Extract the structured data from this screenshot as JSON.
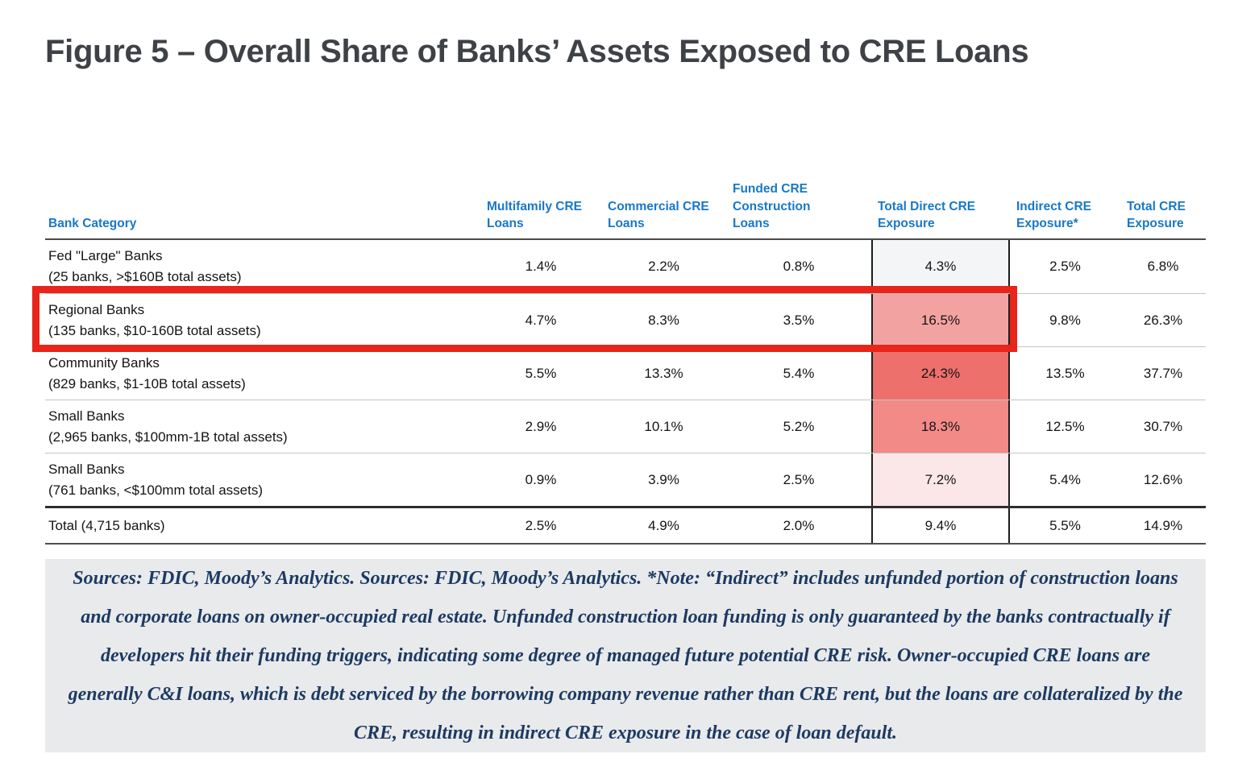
{
  "title": "Figure 5 – Overall Share of Banks’ Assets Exposed to CRE Loans",
  "table": {
    "columns": [
      {
        "id": "bank_category",
        "label": "Bank Category"
      },
      {
        "id": "multifamily",
        "label": "Multifamily CRE\nLoans"
      },
      {
        "id": "commercial",
        "label": "Commercial CRE\nLoans"
      },
      {
        "id": "funded_construction",
        "label": "Funded CRE\nConstruction\nLoans"
      },
      {
        "id": "total_direct",
        "label": "Total Direct CRE\nExposure"
      },
      {
        "id": "indirect",
        "label": "Indirect CRE\nExposure*"
      },
      {
        "id": "total",
        "label": "Total CRE\nExposure"
      }
    ],
    "rows": [
      {
        "name": "Fed \"Large\" Banks",
        "detail": "(25 banks, >$160B total assets)",
        "multifamily": "1.4%",
        "commercial": "2.2%",
        "funded_construction": "0.8%",
        "total_direct": "4.3%",
        "indirect": "2.5%",
        "total": "6.8%",
        "total_direct_bg": "#f4f5f7",
        "highlighted": false
      },
      {
        "name": "Regional Banks",
        "detail": "(135 banks, $10-160B total assets)",
        "multifamily": "4.7%",
        "commercial": "8.3%",
        "funded_construction": "3.5%",
        "total_direct": "16.5%",
        "indirect": "9.8%",
        "total": "26.3%",
        "total_direct_bg": "#f2a3a1",
        "highlighted": true
      },
      {
        "name": "Community Banks",
        "detail": "(829 banks, $1-10B total assets)",
        "multifamily": "5.5%",
        "commercial": "13.3%",
        "funded_construction": "5.4%",
        "total_direct": "24.3%",
        "indirect": "13.5%",
        "total": "37.7%",
        "total_direct_bg": "#ee706d",
        "highlighted": false
      },
      {
        "name": "Small Banks",
        "detail": "(2,965 banks, $100mm-1B total assets)",
        "multifamily": "2.9%",
        "commercial": "10.1%",
        "funded_construction": "5.2%",
        "total_direct": "18.3%",
        "indirect": "12.5%",
        "total": "30.7%",
        "total_direct_bg": "#f28a88",
        "highlighted": false
      },
      {
        "name": "Small Banks",
        "detail": "(761 banks, <$100mm total assets)",
        "multifamily": "0.9%",
        "commercial": "3.9%",
        "funded_construction": "2.5%",
        "total_direct": "7.2%",
        "indirect": "5.4%",
        "total": "12.6%",
        "total_direct_bg": "#fbe6e8",
        "highlighted": false
      }
    ],
    "total_row": {
      "name": "Total (4,715 banks)",
      "multifamily": "2.5%",
      "commercial": "4.9%",
      "funded_construction": "2.0%",
      "total_direct": "9.4%",
      "indirect": "5.5%",
      "total": "14.9%",
      "total_direct_bg": "#ffffff"
    }
  },
  "annotation": {
    "type": "highlight-box",
    "target_row": "Regional Banks",
    "color": "#e8241b"
  },
  "footnote": "Sources: FDIC, Moody’s Analytics. Sources: FDIC, Moody’s Analytics. *Note: “Indirect” includes unfunded portion of construction loans and corporate loans on owner-occupied real estate. Unfunded construction loan funding is only guaranteed by the banks contractually if developers hit their funding triggers, indicating some degree of managed future potential CRE risk. Owner-occupied CRE loans are generally C&I loans, which is debt serviced by the borrowing company revenue rather than CRE rent, but the loans are collateralized by the CRE, resulting in indirect CRE exposure in the case of loan default.",
  "colors": {
    "title_text": "#3e4247",
    "header_text": "#1878c8",
    "body_text": "#141414",
    "highlight_red": "#e8241b",
    "footnote_text": "#1c3a62",
    "footnote_bg": "#e9eaec",
    "heat_low": "#fbe6e8",
    "heat_high": "#ee706d"
  }
}
